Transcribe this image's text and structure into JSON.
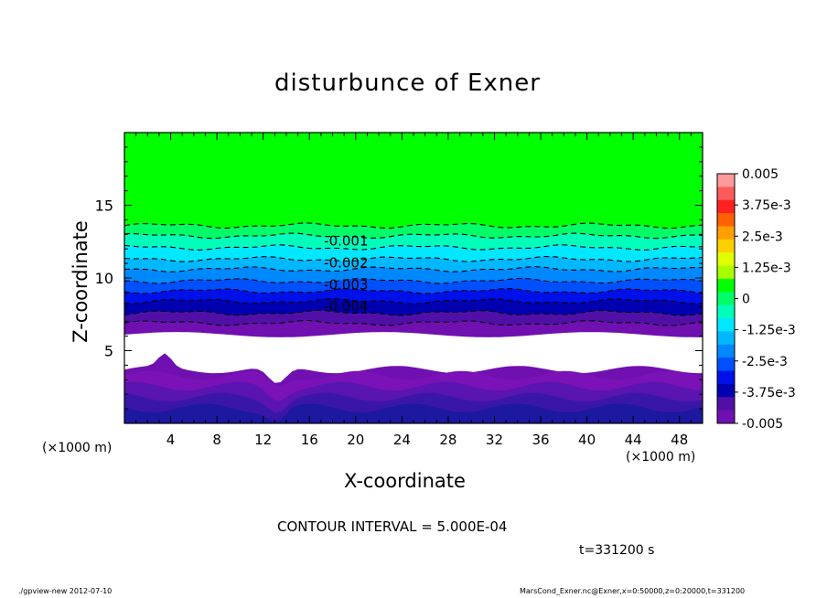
{
  "chart_data": {
    "type": "contour",
    "title": "disturbunce of Exner",
    "xlabel": "X-coordinate",
    "ylabel": "Z-coordinate",
    "x_unit": "(×1000 m)",
    "y_unit": "(×1000 m)",
    "xlim": [
      0,
      50
    ],
    "ylim": [
      0,
      20
    ],
    "x_ticks": [
      4,
      8,
      12,
      16,
      20,
      24,
      28,
      32,
      36,
      40,
      44,
      48
    ],
    "y_ticks": [
      5,
      10,
      15
    ],
    "contour_interval_text": "CONTOUR INTERVAL = 5.000E-04",
    "time_text": "t=331200 s",
    "colorbar": {
      "range": [
        -0.005,
        0.005
      ],
      "labels": [
        "0.005",
        "3.75e-3",
        "2.5e-3",
        "1.25e-3",
        "0",
        "-1.25e-3",
        "-2.5e-3",
        "-3.75e-3",
        "-0.005"
      ],
      "colors": [
        "#ff9a9a",
        "#ff5a5a",
        "#ff2020",
        "#ff6000",
        "#ffa000",
        "#ffd000",
        "#e0ff00",
        "#a8ff00",
        "#00ff00",
        "#00ff66",
        "#00ffbb",
        "#00e8ff",
        "#00b8ff",
        "#0088ff",
        "#0050ff",
        "#0010e8",
        "#0000b0",
        "#5010a8",
        "#7010b0"
      ]
    },
    "contour_labels": [
      {
        "label": "-0.001",
        "x": 19,
        "z": 12.6
      },
      {
        "label": "-0.002",
        "x": 19,
        "z": 11.1
      },
      {
        "label": "-0.003",
        "x": 19,
        "z": 9.6
      },
      {
        "label": "-0.004",
        "x": 19,
        "z": 8.1
      }
    ],
    "bands": [
      {
        "level": 0.0,
        "color": "#00ff00"
      },
      {
        "level": -0.0005,
        "color": "#00ff66"
      },
      {
        "level": -0.001,
        "color": "#00ffbb"
      },
      {
        "level": -0.0015,
        "color": "#00e8ff"
      },
      {
        "level": -0.002,
        "color": "#00b8ff"
      },
      {
        "level": -0.0025,
        "color": "#0088ff"
      },
      {
        "level": -0.003,
        "color": "#0050ff"
      },
      {
        "level": -0.0035,
        "color": "#0010e8"
      },
      {
        "level": -0.004,
        "color": "#0000b0"
      },
      {
        "level": -0.0045,
        "color": "#5010a8"
      },
      {
        "level": -0.005,
        "color": "#7010b0"
      }
    ],
    "band_tops_z": [
      13.6,
      12.9,
      12.1,
      11.3,
      10.6,
      9.8,
      9.1,
      8.4,
      7.6,
      6.9
    ]
  },
  "footer": {
    "left": "./gpview-new   2012-07-10",
    "right": "MarsCond_Exner.nc@Exner,x=0:50000,z=0:20000,t=331200"
  }
}
